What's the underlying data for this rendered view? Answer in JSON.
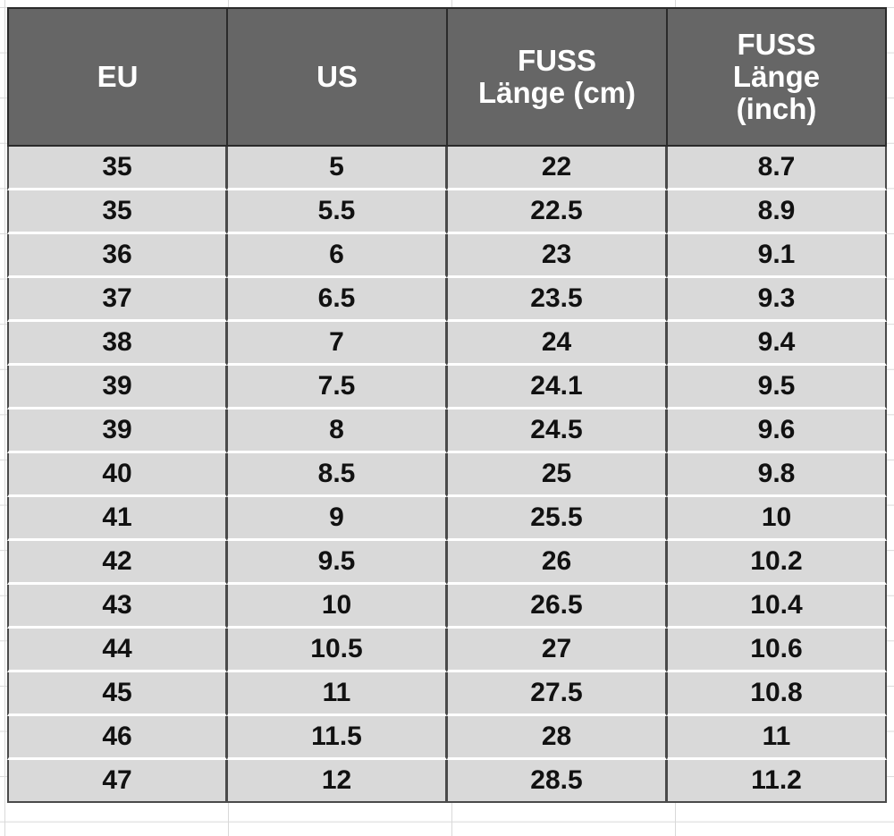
{
  "table": {
    "headers": [
      [
        "EU"
      ],
      [
        "US"
      ],
      [
        "FUSS",
        "Länge (cm)"
      ],
      [
        "FUSS",
        "Länge",
        "(inch)"
      ]
    ],
    "rows": [
      [
        "35",
        "5",
        "22",
        "8.7"
      ],
      [
        "35",
        "5.5",
        "22.5",
        "8.9"
      ],
      [
        "36",
        "6",
        "23",
        "9.1"
      ],
      [
        "37",
        "6.5",
        "23.5",
        "9.3"
      ],
      [
        "38",
        "7",
        "24",
        "9.4"
      ],
      [
        "39",
        "7.5",
        "24.1",
        "9.5"
      ],
      [
        "39",
        "8",
        "24.5",
        "9.6"
      ],
      [
        "40",
        "8.5",
        "25",
        "9.8"
      ],
      [
        "41",
        "9",
        "25.5",
        "10"
      ],
      [
        "42",
        "9.5",
        "26",
        "10.2"
      ],
      [
        "43",
        "10",
        "26.5",
        "10.4"
      ],
      [
        "44",
        "10.5",
        "27",
        "10.6"
      ],
      [
        "45",
        "11",
        "27.5",
        "10.8"
      ],
      [
        "46",
        "11.5",
        "28",
        "11"
      ],
      [
        "47",
        "12",
        "28.5",
        "11.2"
      ]
    ]
  },
  "colors": {
    "header_bg": "#666666",
    "header_text": "#ffffff",
    "cell_bg": "#d9d9d9",
    "cell_text": "#111111"
  }
}
